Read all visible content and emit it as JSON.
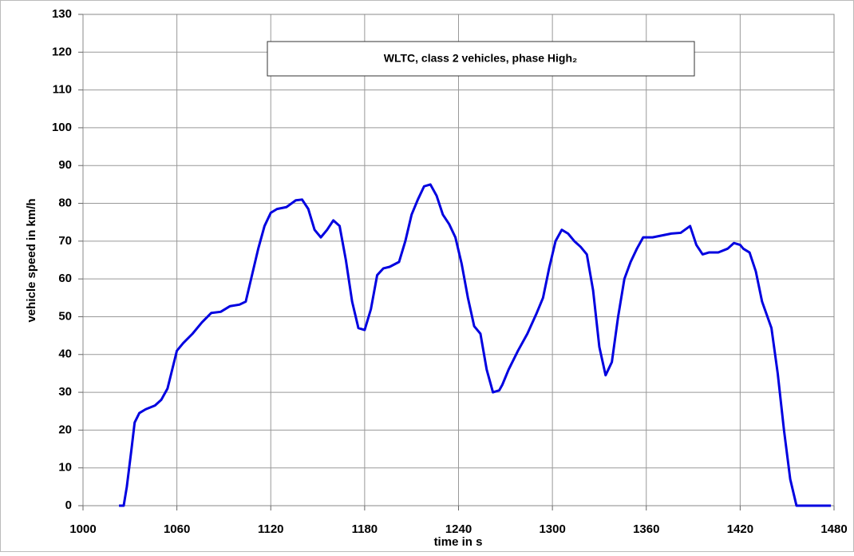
{
  "chart_data": {
    "type": "line",
    "title": "WLTC, class 2 vehicles, phase High₂",
    "x_label": "time in s",
    "y_label": "vehicle speed in km/h",
    "xlim": [
      1000,
      1480
    ],
    "xticks": [
      1000,
      1060,
      1120,
      1180,
      1240,
      1300,
      1360,
      1420,
      1480
    ],
    "ylim": [
      0,
      130
    ],
    "yticks": [
      0,
      10,
      20,
      30,
      40,
      50,
      60,
      70,
      80,
      90,
      100,
      110,
      120,
      130
    ],
    "grid": true,
    "series": [
      {
        "color": "#0000e0",
        "x": [
          1023,
          1026,
          1028,
          1031,
          1033,
          1036,
          1040,
          1046,
          1050,
          1054,
          1057,
          1060,
          1064,
          1070,
          1076,
          1082,
          1088,
          1094,
          1100,
          1104,
          1108,
          1112,
          1116,
          1120,
          1124,
          1130,
          1136,
          1140,
          1144,
          1148,
          1152,
          1156,
          1160,
          1164,
          1168,
          1172,
          1176,
          1180,
          1184,
          1188,
          1192,
          1196,
          1202,
          1206,
          1210,
          1214,
          1218,
          1222,
          1226,
          1230,
          1234,
          1238,
          1242,
          1246,
          1250,
          1254,
          1258,
          1262,
          1266,
          1268,
          1272,
          1278,
          1284,
          1290,
          1294,
          1298,
          1302,
          1306,
          1310,
          1314,
          1318,
          1322,
          1326,
          1330,
          1334,
          1338,
          1342,
          1346,
          1350,
          1354,
          1358,
          1364,
          1370,
          1376,
          1382,
          1388,
          1392,
          1396,
          1400,
          1406,
          1412,
          1416,
          1420,
          1422,
          1426,
          1430,
          1434,
          1440,
          1444,
          1448,
          1452,
          1456,
          1478
        ],
        "values": [
          0,
          0,
          5,
          15,
          22,
          24.5,
          25.5,
          26.5,
          28,
          31,
          36,
          41,
          43,
          45.5,
          48.5,
          51,
          51.3,
          52.8,
          53.2,
          54,
          61,
          68,
          74,
          77.5,
          78.5,
          79,
          80.8,
          81,
          78.5,
          73,
          71,
          73,
          75.5,
          74,
          65,
          54,
          47,
          46.5,
          52,
          61,
          62.8,
          63.2,
          64.5,
          70,
          77,
          81,
          84.5,
          85,
          82,
          77,
          74.5,
          71,
          64,
          55,
          47.5,
          45.5,
          36,
          30,
          30.5,
          32,
          36,
          41,
          45.5,
          51,
          55,
          63,
          70,
          73,
          72,
          70,
          68.5,
          66.5,
          57,
          42,
          34.5,
          38,
          50,
          60,
          64.5,
          68,
          71,
          71,
          71.5,
          72,
          72.2,
          74,
          69,
          66.5,
          67,
          67,
          68,
          69.5,
          69,
          68,
          67,
          62,
          54,
          47,
          35,
          20,
          7,
          0,
          0
        ]
      }
    ]
  }
}
